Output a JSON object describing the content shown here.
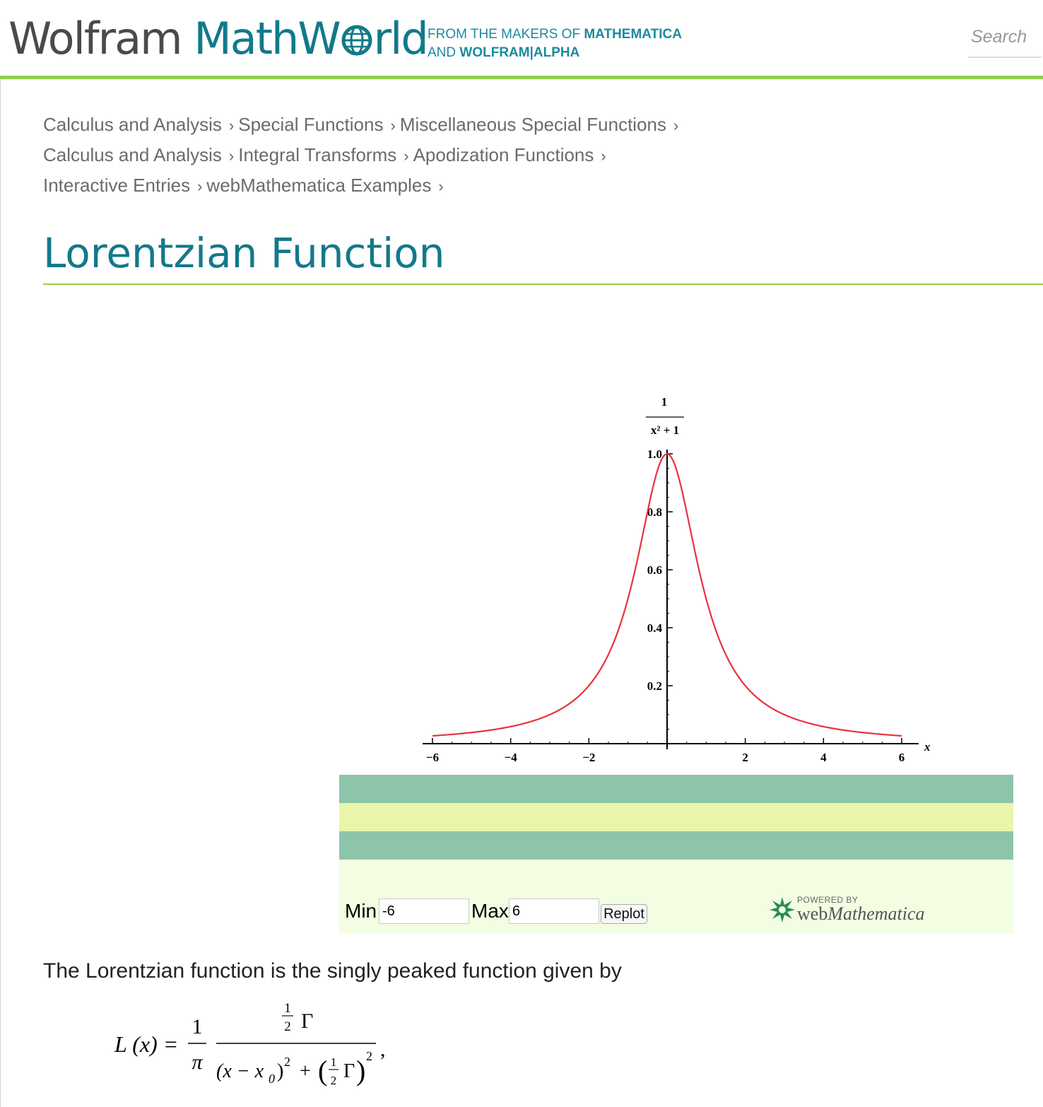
{
  "header": {
    "logo_part1": "Wolfram",
    "logo_part2": "MathW",
    "logo_part3": "rld",
    "tagline_line1_regular": "FROM THE MAKERS OF ",
    "tagline_line1_bold": "MATHEMATICA",
    "tagline_line2_regular": "AND ",
    "tagline_line2_bold": "WOLFRAM|ALPHA",
    "search_placeholder": "Search"
  },
  "breadcrumbs": [
    [
      "Calculus and Analysis",
      "Special Functions",
      "Miscellaneous Special Functions"
    ],
    [
      "Calculus and Analysis",
      "Integral Transforms",
      "Apodization Functions"
    ],
    [
      "Interactive Entries",
      "webMathematica Examples"
    ]
  ],
  "breadcrumb_separator": "›",
  "page_title": "Lorentzian Function",
  "chart_data": {
    "type": "line",
    "function_label_numerator": "1",
    "function_label_denominator": "x² + 1",
    "xlabel": "x",
    "xlim": [
      -6,
      6
    ],
    "ylim": [
      0,
      1.0
    ],
    "x_ticks": [
      "−6",
      "−4",
      "−2",
      "2",
      "4",
      "6"
    ],
    "y_ticks": [
      "0.2",
      "0.4",
      "0.6",
      "0.8",
      "1.0"
    ],
    "series": [
      {
        "color": "#e8323c",
        "formula": "1/(x^2+1)",
        "x_start": -6,
        "x_end": 6,
        "samples": 241
      }
    ]
  },
  "controls": {
    "min_label": "Min",
    "min_value": "-6",
    "max_label": "Max",
    "max_value": "6",
    "replot_label": "Replot"
  },
  "powered_by": {
    "line1": "POWERED BY",
    "line2_a": "web",
    "line2_b": "Mathematica"
  },
  "colors": {
    "brand_teal": "#12798a",
    "brand_green": "#8ed24c",
    "band_green": "#8dc5aa",
    "band_yellow": "#e8f5aa",
    "band_light": "#f2fde2",
    "curve_red": "#e8323c"
  },
  "intro_text": "The Lorentzian function is the singly peaked function given by",
  "formula": {
    "lhs": "L (x) =",
    "coef_num": "1",
    "coef_den": "π",
    "frac_num": "Γ",
    "half_num": "1",
    "half_den": "2",
    "den_part1": "(x − x",
    "den_sub": "0",
    "den_part2": ")",
    "sq": "2",
    "plus": "+",
    "gamma": "Γ",
    "trailing": ","
  }
}
